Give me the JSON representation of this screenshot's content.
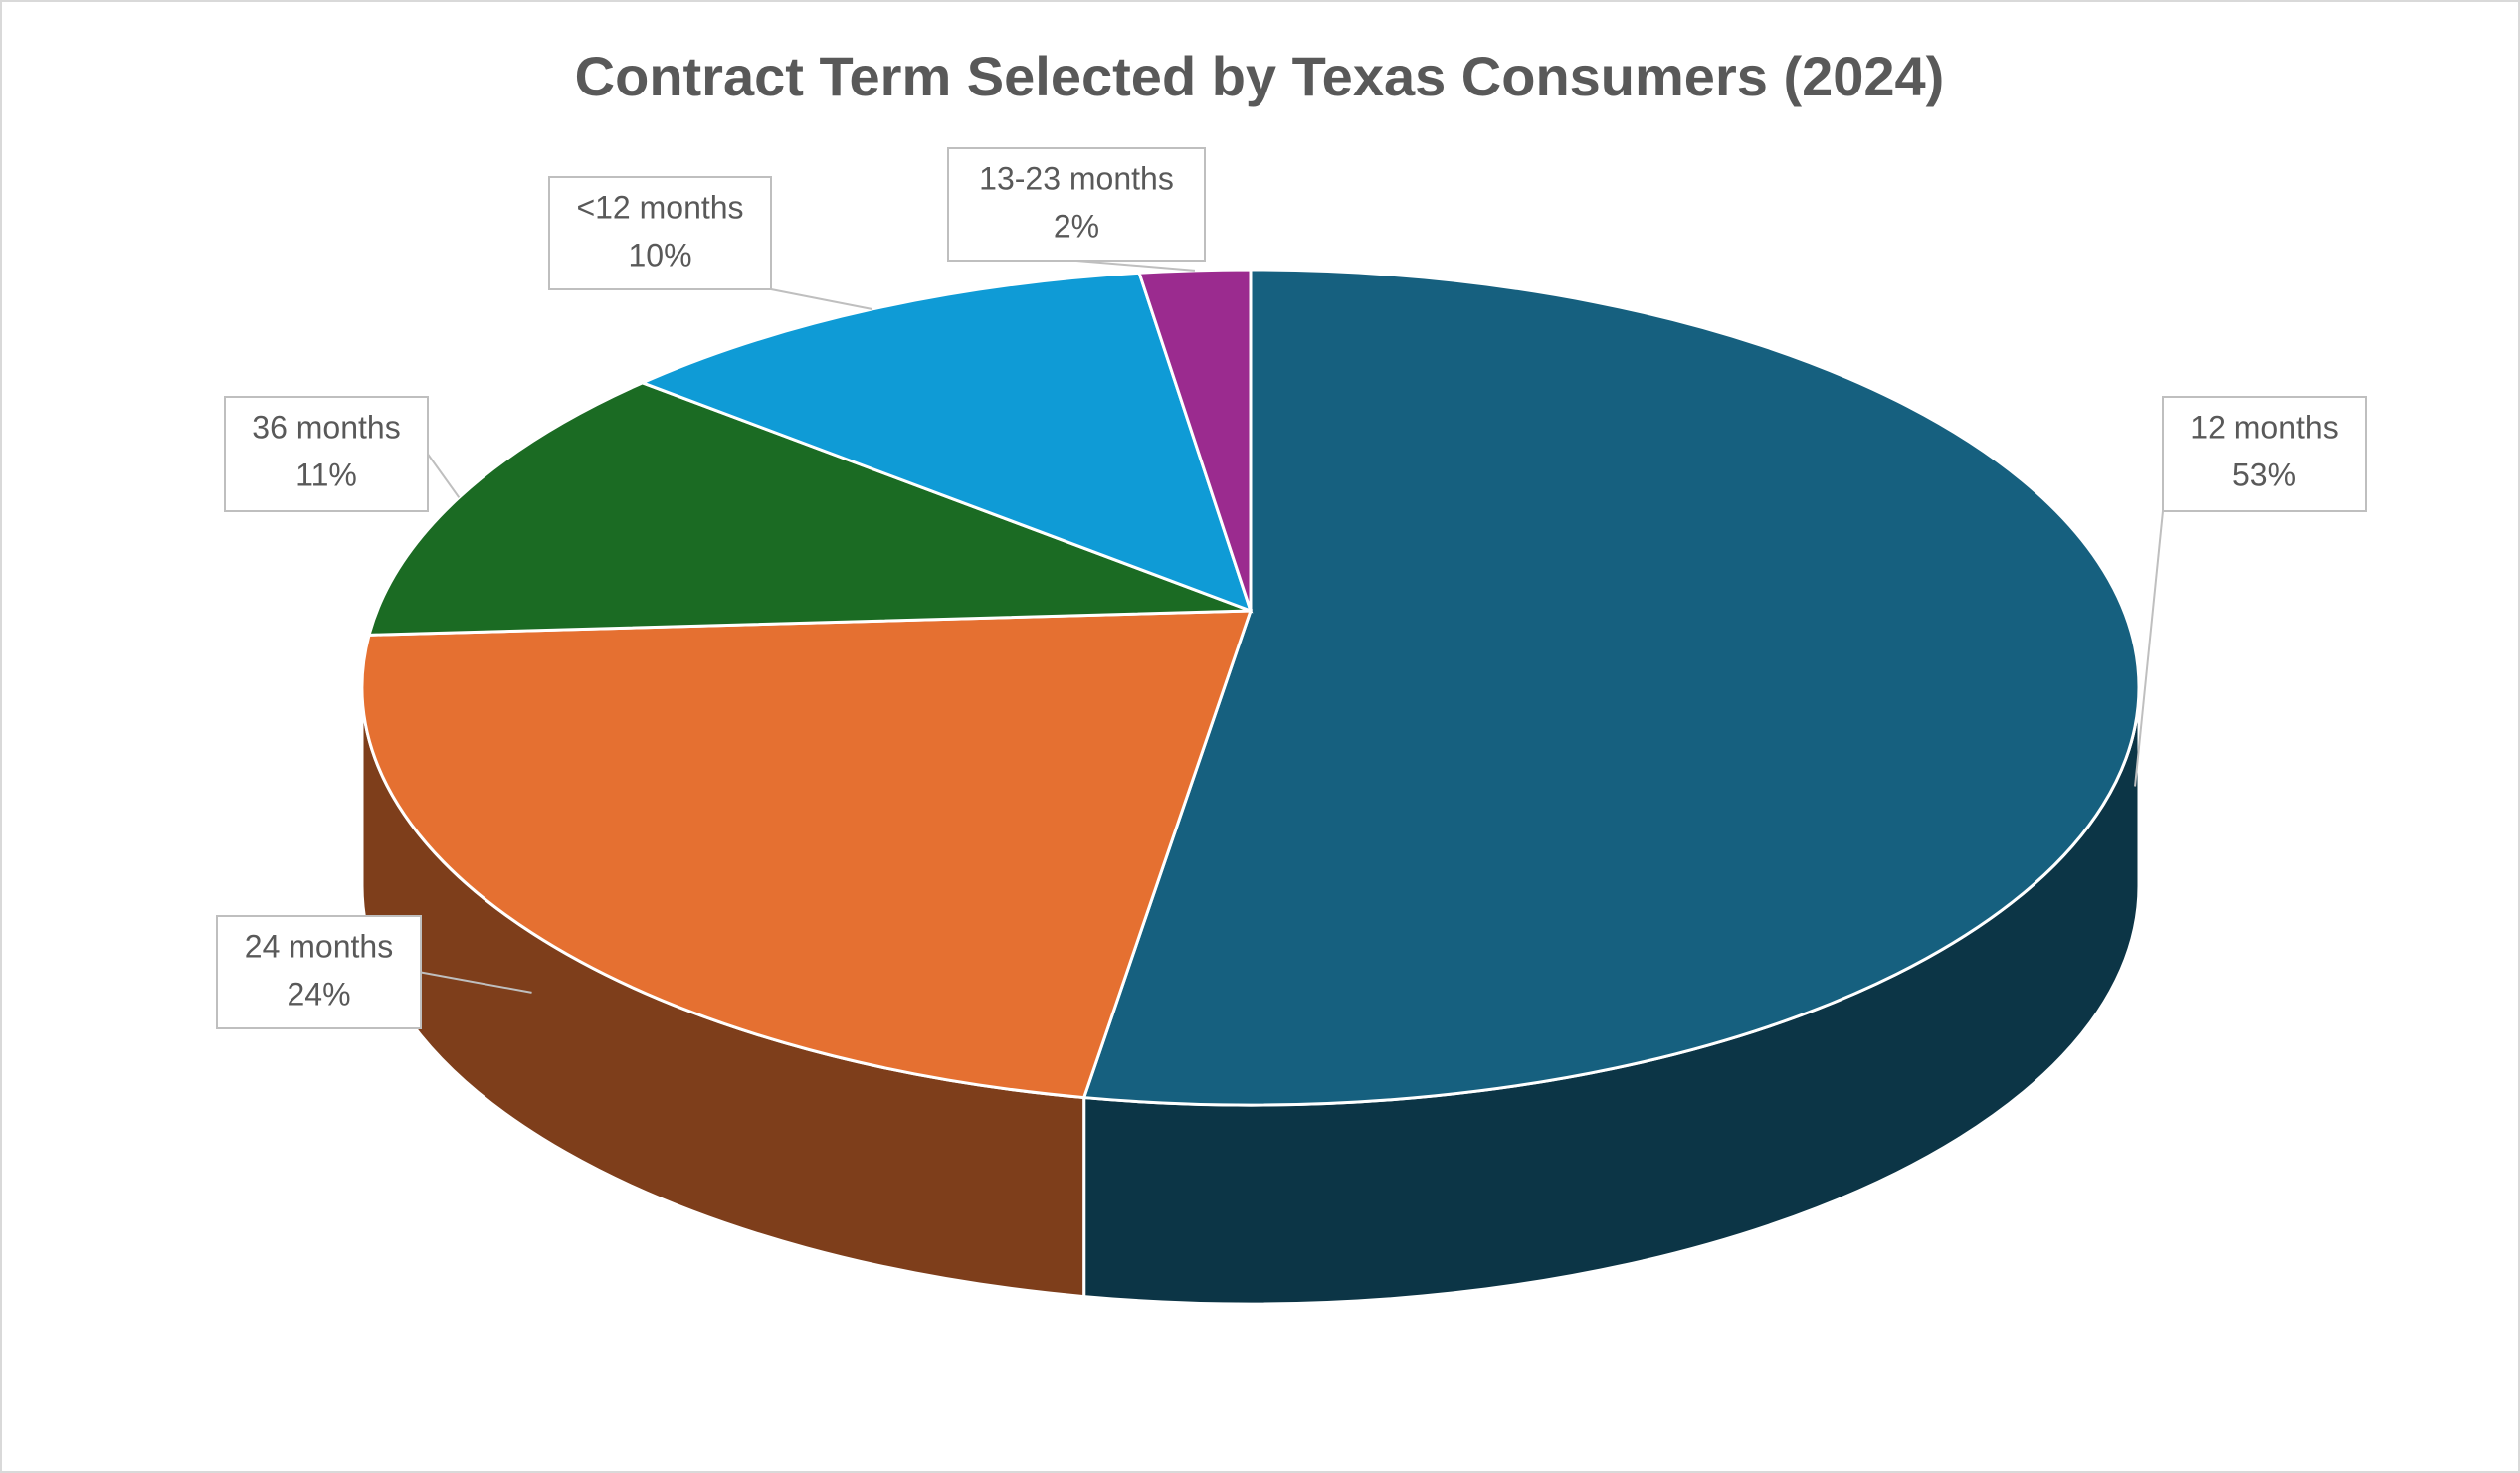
{
  "chart_data": {
    "type": "pie",
    "title": "Contract Term Selected by Texas Consumers (2024)",
    "categories": [
      "12 months",
      "24 months",
      "36 months",
      "<12 months",
      "13-23 months"
    ],
    "values": [
      53,
      24,
      11,
      10,
      2
    ],
    "value_labels": [
      "53%",
      "24%",
      "11%",
      "10%",
      "2%"
    ],
    "colors": [
      "#16607f",
      "#e57031",
      "#1b6b23",
      "#0f9bd6",
      "#9b2b8f"
    ]
  }
}
